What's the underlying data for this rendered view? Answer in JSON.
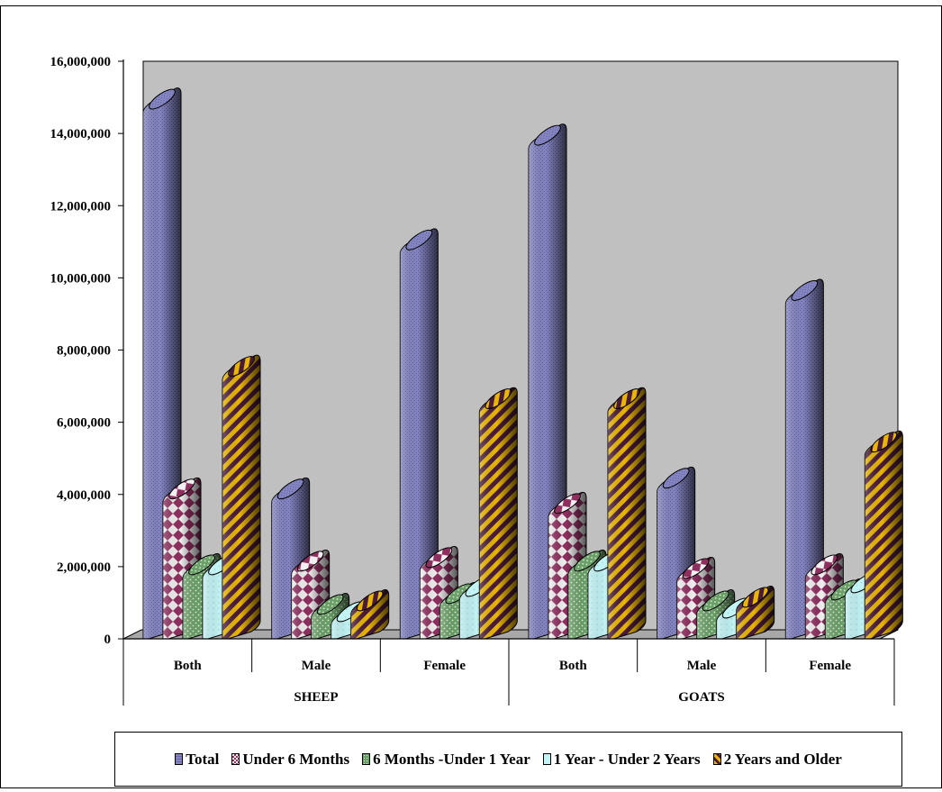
{
  "chart_data": {
    "type": "bar",
    "title": "",
    "xlabel": "",
    "ylabel": "",
    "ylim": [
      0,
      16000000
    ],
    "yticks": [
      "0",
      "2,000,000",
      "4,000,000",
      "6,000,000",
      "8,000,000",
      "10,000,000",
      "12,000,000",
      "14,000,000",
      "16,000,000"
    ],
    "groups": [
      {
        "label": "SHEEP",
        "categories": [
          "Both",
          "Male",
          "Female"
        ]
      },
      {
        "label": "GOATS",
        "categories": [
          "Both",
          "Male",
          "Female"
        ]
      }
    ],
    "categories": [
      "Both",
      "Male",
      "Female",
      "Both",
      "Male",
      "Female"
    ],
    "series": [
      {
        "name": "Total",
        "values": [
          14700000,
          3900000,
          10800000,
          13700000,
          4200000,
          9400000
        ]
      },
      {
        "name": "Under 6 Months",
        "values": [
          3900000,
          1900000,
          2000000,
          3500000,
          1700000,
          1800000
        ]
      },
      {
        "name": "6 Months -Under 1 Year",
        "values": [
          1800000,
          700000,
          1000000,
          1900000,
          800000,
          1100000
        ]
      },
      {
        "name": "1 Year - Under 2 Years",
        "values": [
          1800000,
          500000,
          1200000,
          1900000,
          600000,
          1300000
        ]
      },
      {
        "name": "2 Years and Older",
        "values": [
          7300000,
          800000,
          6400000,
          6400000,
          900000,
          5200000
        ]
      }
    ],
    "grid": false,
    "legend": "bottom",
    "colors": {
      "plot_background": "#c0c0c0",
      "series": [
        "#8c8cc8",
        "#a04070",
        "#6fa86a",
        "#bff2f5",
        "#e0b000"
      ]
    }
  }
}
